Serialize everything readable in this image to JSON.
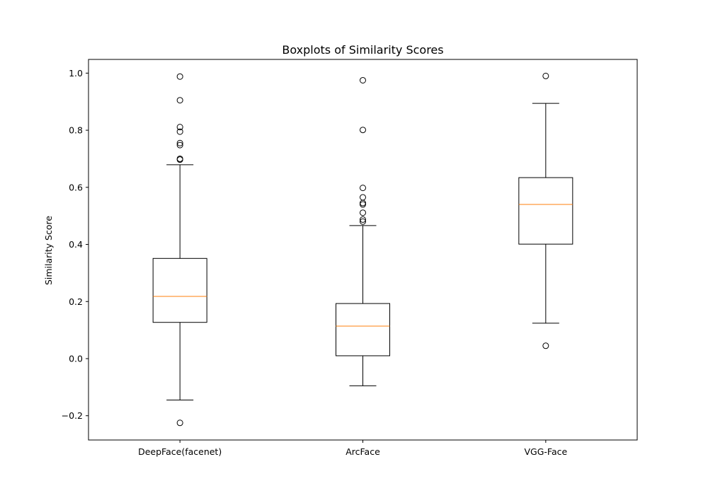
{
  "chart_data": {
    "type": "boxplot",
    "title": "Boxplots of Similarity Scores",
    "xlabel": "",
    "ylabel": "Similarity Score",
    "ylim": [
      -0.285,
      1.048
    ],
    "yticks": [
      -0.2,
      0.0,
      0.2,
      0.4,
      0.6,
      0.8,
      1.0
    ],
    "ytick_labels": [
      "−0.2",
      "0.0",
      "0.2",
      "0.4",
      "0.6",
      "0.8",
      "1.0"
    ],
    "grid": false,
    "colors": {
      "box": "#000000",
      "median": "#ff7f0e",
      "flier": "#000000"
    },
    "categories": [
      "DeepFace(facenet)",
      "ArcFace",
      "VGG-Face"
    ],
    "boxes": [
      {
        "label": "DeepFace(facenet)",
        "whisker_low": -0.145,
        "q1": 0.127,
        "median": 0.218,
        "q3": 0.351,
        "whisker_high": 0.679,
        "fliers": [
          -0.225,
          0.697,
          0.7,
          0.748,
          0.755,
          0.795,
          0.811,
          0.905,
          0.988
        ]
      },
      {
        "label": "ArcFace",
        "whisker_low": -0.095,
        "q1": 0.01,
        "median": 0.114,
        "q3": 0.193,
        "whisker_high": 0.466,
        "fliers": [
          0.48,
          0.487,
          0.511,
          0.54,
          0.545,
          0.565,
          0.598,
          0.801,
          0.975
        ]
      },
      {
        "label": "VGG-Face",
        "whisker_low": 0.124,
        "q1": 0.401,
        "median": 0.54,
        "q3": 0.634,
        "whisker_high": 0.894,
        "fliers": [
          0.045,
          0.99
        ]
      }
    ]
  }
}
